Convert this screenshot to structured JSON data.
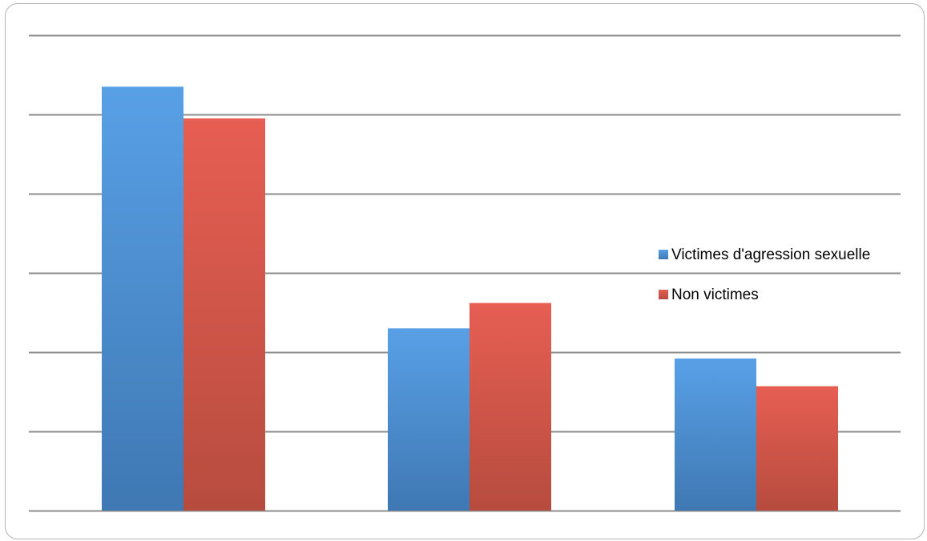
{
  "chart_data": {
    "type": "bar",
    "categories": [
      "",
      "",
      ""
    ],
    "series": [
      {
        "name": "Victimes d'agression sexuelle",
        "values": [
          5.35,
          2.3,
          1.92
        ],
        "color": "#4f8fd3"
      },
      {
        "name": "Non victimes",
        "values": [
          4.95,
          2.62,
          1.57
        ],
        "color": "#d9574c"
      }
    ],
    "ylim": [
      0,
      6
    ],
    "yticks": [
      0,
      1,
      2,
      3,
      4,
      5,
      6
    ],
    "tick_labels_shown": false,
    "grid": true,
    "legend_position": "right"
  }
}
